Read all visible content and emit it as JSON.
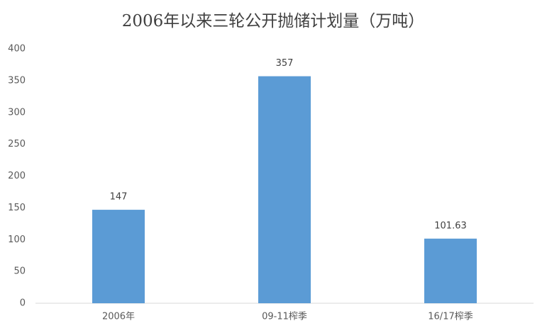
{
  "chart_data": {
    "type": "bar",
    "title": "2006年以来三轮公开抛储计划量（万吨）",
    "categories": [
      "2006年",
      "09-11榨季",
      "16/17榨季"
    ],
    "values": [
      147,
      357,
      101.63
    ],
    "color": "#5b9bd5",
    "ylim": [
      0,
      400
    ],
    "yticks": [
      0,
      50,
      100,
      150,
      200,
      250,
      300,
      350,
      400
    ],
    "grid": false,
    "data_labels": true
  }
}
